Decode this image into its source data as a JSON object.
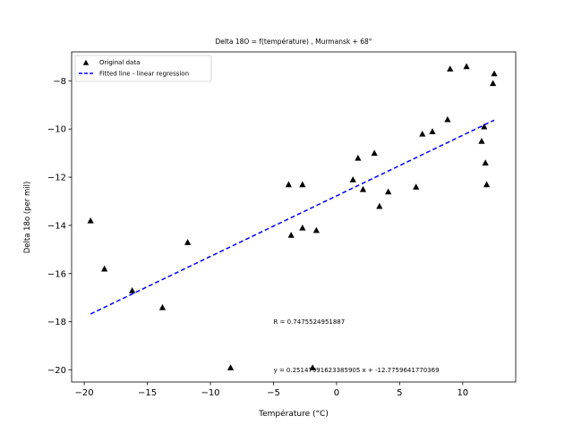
{
  "chart_data": {
    "type": "scatter",
    "title": "Delta 18O = f(température) , Murmansk + 68°",
    "xlabel": "Température (°C)",
    "ylabel": "Delta 18o (per mil)",
    "xlim": [
      -21,
      14.2
    ],
    "ylim": [
      -20.5,
      -6.8
    ],
    "x_ticks": [
      -20,
      -15,
      -10,
      -5,
      0,
      5,
      10
    ],
    "x_tick_labels": [
      "−20",
      "−15",
      "−10",
      "−5",
      "0",
      "5",
      "10"
    ],
    "y_ticks": [
      -20,
      -18,
      -16,
      -14,
      -12,
      -10,
      -8
    ],
    "y_tick_labels": [
      "−20",
      "−18",
      "−16",
      "−14",
      "−12",
      "−10",
      "−8"
    ],
    "grid": false,
    "legend_position": "top-left",
    "series": [
      {
        "name": "Original data",
        "kind": "scatter",
        "marker": "triangle",
        "color": "#000000",
        "points": [
          [
            -19.5,
            -13.8
          ],
          [
            -18.4,
            -15.8
          ],
          [
            -16.2,
            -16.7
          ],
          [
            -13.8,
            -17.4
          ],
          [
            -11.8,
            -14.7
          ],
          [
            -8.4,
            -19.9
          ],
          [
            -3.8,
            -12.3
          ],
          [
            -3.6,
            -14.4
          ],
          [
            -2.7,
            -12.3
          ],
          [
            -2.7,
            -14.1
          ],
          [
            -1.9,
            -19.9
          ],
          [
            -1.6,
            -14.2
          ],
          [
            1.3,
            -12.1
          ],
          [
            1.7,
            -11.2
          ],
          [
            2.1,
            -12.5
          ],
          [
            3.0,
            -11.0
          ],
          [
            3.4,
            -13.2
          ],
          [
            4.1,
            -12.6
          ],
          [
            6.3,
            -12.4
          ],
          [
            6.8,
            -10.2
          ],
          [
            7.6,
            -10.1
          ],
          [
            8.8,
            -9.6
          ],
          [
            9.0,
            -7.5
          ],
          [
            10.3,
            -7.4
          ],
          [
            11.5,
            -10.5
          ],
          [
            11.7,
            -9.9
          ],
          [
            11.8,
            -11.4
          ],
          [
            11.9,
            -12.3
          ],
          [
            12.4,
            -8.1
          ],
          [
            12.5,
            -7.7
          ]
        ]
      },
      {
        "name": "Fitted line - linear regression",
        "kind": "line",
        "style": "dashed",
        "color": "#0000ff",
        "x": [
          -19.5,
          12.5
        ],
        "y": [
          -17.678,
          -9.632
        ]
      }
    ],
    "annotations": [
      {
        "text": "R = 0.7475524951887",
        "x": -5,
        "y": -18
      },
      {
        "text": "y = 0.25147991623385905 x + -12.7759641770369",
        "x": -5,
        "y": -20
      }
    ]
  }
}
